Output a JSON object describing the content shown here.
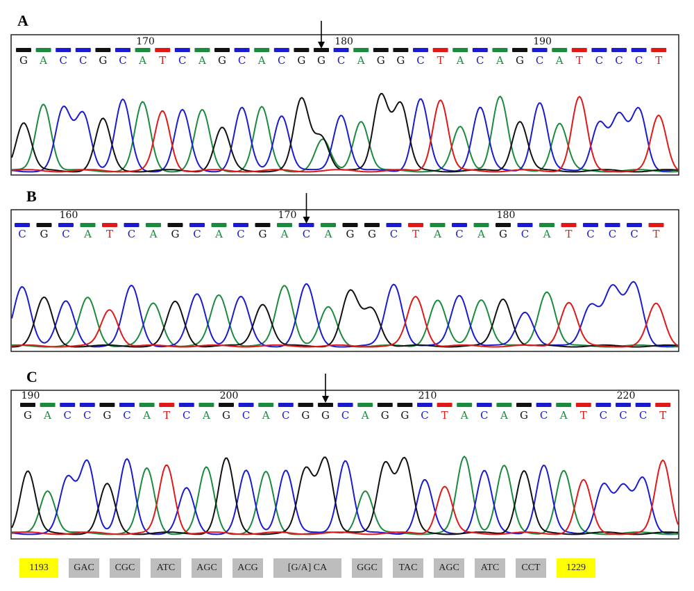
{
  "colors": {
    "A": "#1a8a3c",
    "C": "#1a1ad0",
    "G": "#111111",
    "T": "#e01818",
    "highlight": "#ffff00",
    "codon_bg": "#bdbdbd"
  },
  "panels": [
    {
      "id": "A",
      "label": "A",
      "bases": "GACCGCATCAGCACGGCAGGCTACAGCATCCCT",
      "tick_labels": [
        {
          "base_index": 6,
          "text": "170"
        },
        {
          "base_index": 16,
          "text": "180"
        },
        {
          "base_index": 26,
          "text": "190"
        }
      ],
      "arrow_base_index": 15,
      "double_peak_index": 15,
      "variant_note": "heterozygous G/A"
    },
    {
      "id": "B",
      "label": "B",
      "bases": "CGCATCAGCACGACAGGCTACAGCATCCCT",
      "tick_labels": [
        {
          "base_index": 2,
          "text": "160"
        },
        {
          "base_index": 12,
          "text": "170"
        },
        {
          "base_index": 22,
          "text": "180"
        }
      ],
      "arrow_base_index": 13,
      "double_peak_index": -1,
      "variant_note": "homozygous A"
    },
    {
      "id": "C",
      "label": "C",
      "bases": "GACCGCATCAGCACGGCAGGCTACAGCATCCCT",
      "tick_labels": [
        {
          "base_index": 0,
          "text": "190"
        },
        {
          "base_index": 10,
          "text": "200"
        },
        {
          "base_index": 20,
          "text": "210"
        },
        {
          "base_index": 30,
          "text": "220"
        }
      ],
      "arrow_base_index": 15,
      "double_peak_index": -1,
      "variant_note": "homozygous G"
    }
  ],
  "sequence_bar": [
    {
      "text": "1193",
      "style": "highlight"
    },
    {
      "text": "GAC",
      "style": "codon"
    },
    {
      "text": "CGC",
      "style": "codon"
    },
    {
      "text": "ATC",
      "style": "codon"
    },
    {
      "text": "AGC",
      "style": "codon"
    },
    {
      "text": "ACG",
      "style": "codon"
    },
    {
      "text": "[G/A] CA",
      "style": "codon"
    },
    {
      "text": "GGC",
      "style": "codon"
    },
    {
      "text": "TAC",
      "style": "codon"
    },
    {
      "text": "AGC",
      "style": "codon"
    },
    {
      "text": "ATC",
      "style": "codon"
    },
    {
      "text": "CCT",
      "style": "codon"
    },
    {
      "text": "1229",
      "style": "highlight"
    }
  ]
}
